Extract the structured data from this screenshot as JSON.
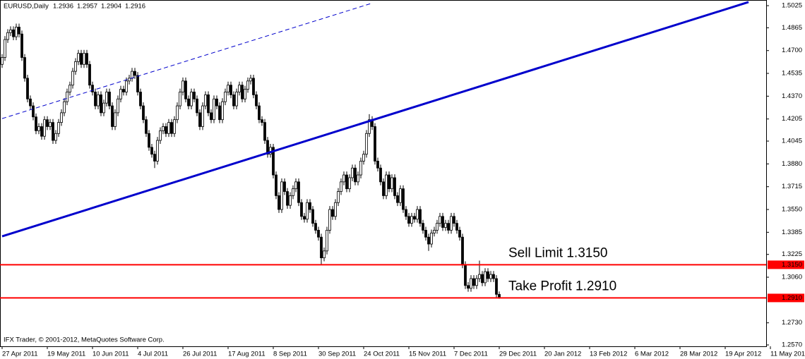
{
  "chart_data": {
    "type": "candlestick",
    "symbol": "EURUSD,Daily",
    "footer": "IFX Trader, © 2001-2012, MetaQuotes Software Corp.",
    "up_color": "#ffffff",
    "down_color": "#000000",
    "wick_color": "#000000",
    "ylim": [
      1.256,
      1.5066
    ],
    "yticks": [
      1.5025,
      1.4865,
      {
        "value": 1.47,
        "label": "1.4700"
      },
      1.4535,
      {
        "value": 1.437,
        "label": "1.4370"
      },
      1.4205,
      1.4045,
      {
        "value": 1.388,
        "label": "1.3880"
      },
      1.3715,
      {
        "value": 1.355,
        "label": "1.3550"
      },
      1.3385,
      1.3225,
      {
        "value": 1.306,
        "label": "1.3060"
      },
      {
        "value": 1.273,
        "label": "1.2730"
      },
      {
        "value": 1.257,
        "label": "1.2570"
      }
    ],
    "xlim": [
      -0.75,
      270.5
    ],
    "xticks": [
      {
        "value": 0,
        "label": "27 Apr 2011"
      },
      {
        "value": 16,
        "label": "19 May 2011"
      },
      {
        "value": 32,
        "label": "10 Jun 2011"
      },
      {
        "value": 48,
        "label": "4 Jul 2011"
      },
      {
        "value": 64,
        "label": "26 Jul 2011"
      },
      {
        "value": 80,
        "label": "17 Aug 2011"
      },
      {
        "value": 96,
        "label": "8 Sep 2011"
      },
      {
        "value": 112,
        "label": "30 Sep 2011"
      },
      {
        "value": 128,
        "label": "24 Oct 2011"
      },
      {
        "value": 144,
        "label": "15 Nov 2011"
      },
      {
        "value": 160,
        "label": "7 Dec 2011"
      },
      {
        "value": 176,
        "label": "29 Dec 2011"
      },
      {
        "value": 192,
        "label": "20 Jan 2012"
      },
      {
        "value": 208,
        "label": "13 Feb 2012"
      },
      {
        "value": 224,
        "label": "6 Mar 2012"
      },
      {
        "value": 240,
        "label": "28 Mar 2012"
      },
      {
        "value": 256,
        "label": "19 Apr 2012"
      },
      {
        "value": 272,
        "label": "11 May 201"
      }
    ],
    "levels": [
      {
        "price": {
          "value": 1.315,
          "label": "1.3150"
        },
        "text": "Sell Limit 1.3150",
        "color": "#ff0000"
      },
      {
        "price": {
          "value": 1.291,
          "label": "1.2910"
        },
        "text": "Take Profit 1.2910",
        "color": "#ff0000"
      }
    ],
    "trendlines": [
      {
        "x": [
          0,
          264.25
        ],
        "y": [
          1.3356,
          1.5051
        ],
        "color": "#0000cc",
        "style": "solid"
      },
      {
        "x": [
          0,
          130.5
        ],
        "y": [
          1.4208,
          1.504
        ],
        "color": "#0000cc",
        "style": "dashed"
      }
    ],
    "ohlc": [
      [
        1.46,
        1.4675,
        1.4575,
        1.465
      ],
      [
        1.465,
        1.4805,
        1.4625,
        1.478
      ],
      [
        1.478,
        1.4855,
        1.4755,
        1.483
      ],
      [
        1.483,
        1.4875,
        1.4805,
        1.485
      ],
      [
        1.485,
        1.4875,
        1.4775,
        1.48
      ],
      [
        1.48,
        1.4895,
        1.4775,
        1.487
      ],
      [
        1.487,
        1.4895,
        1.4795,
        1.482
      ],
      [
        1.482,
        1.4845,
        1.4625,
        1.465
      ],
      [
        1.465,
        1.4675,
        1.4475,
        1.45
      ],
      [
        1.45,
        1.4525,
        1.4325,
        1.435
      ],
      [
        1.435,
        1.4375,
        1.4275,
        1.43
      ],
      [
        1.43,
        1.4325,
        1.4195,
        1.422
      ],
      [
        1.422,
        1.4245,
        1.4095,
        1.412
      ],
      [
        1.412,
        1.4175,
        1.4095,
        1.415
      ],
      [
        1.415,
        1.4175,
        1.4055,
        1.408
      ],
      [
        1.408,
        1.4225,
        1.4055,
        1.42
      ],
      [
        1.42,
        1.4225,
        1.4125,
        1.415
      ],
      [
        1.415,
        1.4205,
        1.4125,
        1.418
      ],
      [
        1.418,
        1.4205,
        1.4025,
        1.405
      ],
      [
        1.405,
        1.4125,
        1.4025,
        1.41
      ],
      [
        1.41,
        1.4205,
        1.4075,
        1.418
      ],
      [
        1.418,
        1.4275,
        1.4155,
        1.425
      ],
      [
        1.425,
        1.4355,
        1.4225,
        1.433
      ],
      [
        1.433,
        1.4425,
        1.4305,
        1.44
      ],
      [
        1.44,
        1.4475,
        1.4375,
        1.445
      ],
      [
        1.445,
        1.4575,
        1.4425,
        1.455
      ],
      [
        1.455,
        1.4645,
        1.4525,
        1.462
      ],
      [
        1.462,
        1.4705,
        1.4595,
        1.468
      ],
      [
        1.468,
        1.4705,
        1.4575,
        1.46
      ],
      [
        1.46,
        1.4705,
        1.4575,
        1.468
      ],
      [
        1.468,
        1.4705,
        1.4575,
        1.46
      ],
      [
        1.46,
        1.4625,
        1.4425,
        1.445
      ],
      [
        1.445,
        1.4475,
        1.4375,
        1.44
      ],
      [
        1.44,
        1.4425,
        1.4275,
        1.43
      ],
      [
        1.43,
        1.4405,
        1.4275,
        1.438
      ],
      [
        1.438,
        1.4405,
        1.4225,
        1.425
      ],
      [
        1.425,
        1.4345,
        1.4225,
        1.432
      ],
      [
        1.432,
        1.4425,
        1.4295,
        1.44
      ],
      [
        1.44,
        1.4425,
        1.4275,
        1.43
      ],
      [
        1.43,
        1.4325,
        1.4125,
        1.415
      ],
      [
        1.415,
        1.4275,
        1.4125,
        1.425
      ],
      [
        1.425,
        1.4375,
        1.4225,
        1.435
      ],
      [
        1.435,
        1.4445,
        1.4325,
        1.442
      ],
      [
        1.442,
        1.4445,
        1.4375,
        1.44
      ],
      [
        1.44,
        1.4505,
        1.4375,
        1.448
      ],
      [
        1.448,
        1.4525,
        1.4455,
        1.45
      ],
      [
        1.45,
        1.4575,
        1.4475,
        1.455
      ],
      [
        1.455,
        1.4575,
        1.4495,
        1.452
      ],
      [
        1.452,
        1.4545,
        1.4375,
        1.44
      ],
      [
        1.44,
        1.4425,
        1.4275,
        1.43
      ],
      [
        1.43,
        1.4325,
        1.4175,
        1.42
      ],
      [
        1.42,
        1.4225,
        1.4075,
        1.41
      ],
      [
        1.41,
        1.4125,
        1.3975,
        1.4
      ],
      [
        1.4,
        1.4025,
        1.3925,
        1.395
      ],
      [
        1.395,
        1.3975,
        1.385,
        1.39
      ],
      [
        1.39,
        1.4075,
        1.3875,
        1.405
      ],
      [
        1.405,
        1.4145,
        1.4025,
        1.412
      ],
      [
        1.412,
        1.4175,
        1.4095,
        1.415
      ],
      [
        1.415,
        1.4175,
        1.4075,
        1.41
      ],
      [
        1.41,
        1.4205,
        1.4075,
        1.418
      ],
      [
        1.418,
        1.4205,
        1.4075,
        1.41
      ],
      [
        1.41,
        1.4225,
        1.4075,
        1.42
      ],
      [
        1.42,
        1.4325,
        1.4175,
        1.43
      ],
      [
        1.43,
        1.4425,
        1.4275,
        1.44
      ],
      [
        1.44,
        1.4505,
        1.4375,
        1.448
      ],
      [
        1.448,
        1.4505,
        1.4325,
        1.435
      ],
      [
        1.435,
        1.4375,
        1.4275,
        1.43
      ],
      [
        1.43,
        1.4425,
        1.4275,
        1.44
      ],
      [
        1.44,
        1.4425,
        1.4325,
        1.435
      ],
      [
        1.435,
        1.4375,
        1.4225,
        1.425
      ],
      [
        1.425,
        1.4275,
        1.4125,
        1.415
      ],
      [
        1.415,
        1.4325,
        1.4125,
        1.43
      ],
      [
        1.43,
        1.4405,
        1.4275,
        1.438
      ],
      [
        1.438,
        1.4405,
        1.4225,
        1.425
      ],
      [
        1.425,
        1.4275,
        1.4175,
        1.42
      ],
      [
        1.42,
        1.4375,
        1.4175,
        1.435
      ],
      [
        1.435,
        1.4375,
        1.4275,
        1.43
      ],
      [
        1.43,
        1.4325,
        1.4175,
        1.42
      ],
      [
        1.42,
        1.4355,
        1.4175,
        1.433
      ],
      [
        1.433,
        1.4425,
        1.4305,
        1.44
      ],
      [
        1.44,
        1.4475,
        1.4375,
        1.445
      ],
      [
        1.445,
        1.4475,
        1.4355,
        1.438
      ],
      [
        1.438,
        1.4405,
        1.4275,
        1.43
      ],
      [
        1.43,
        1.4425,
        1.4275,
        1.44
      ],
      [
        1.44,
        1.4475,
        1.4375,
        1.445
      ],
      [
        1.445,
        1.4475,
        1.4325,
        1.435
      ],
      [
        1.435,
        1.4445,
        1.4325,
        1.442
      ],
      [
        1.442,
        1.4505,
        1.4395,
        1.448
      ],
      [
        1.448,
        1.4525,
        1.4455,
        1.45
      ],
      [
        1.45,
        1.4525,
        1.4355,
        1.438
      ],
      [
        1.438,
        1.4405,
        1.4275,
        1.43
      ],
      [
        1.43,
        1.4325,
        1.4175,
        1.42
      ],
      [
        1.42,
        1.4225,
        1.4155,
        1.418
      ],
      [
        1.418,
        1.4205,
        1.4025,
        1.405
      ],
      [
        1.405,
        1.4075,
        1.3925,
        1.395
      ],
      [
        1.395,
        1.4025,
        1.3925,
        1.4
      ],
      [
        1.4,
        1.4025,
        1.3775,
        1.38
      ],
      [
        1.38,
        1.3825,
        1.3625,
        1.365
      ],
      [
        1.365,
        1.3675,
        1.3525,
        1.355
      ],
      [
        1.355,
        1.3775,
        1.3525,
        1.375
      ],
      [
        1.375,
        1.3775,
        1.3655,
        1.368
      ],
      [
        1.368,
        1.3705,
        1.3555,
        1.358
      ],
      [
        1.358,
        1.3675,
        1.3555,
        1.365
      ],
      [
        1.365,
        1.3725,
        1.3625,
        1.37
      ],
      [
        1.37,
        1.3775,
        1.3675,
        1.375
      ],
      [
        1.375,
        1.3775,
        1.3575,
        1.36
      ],
      [
        1.36,
        1.3625,
        1.3475,
        1.35
      ],
      [
        1.35,
        1.3525,
        1.3455,
        1.348
      ],
      [
        1.348,
        1.3625,
        1.3455,
        1.36
      ],
      [
        1.36,
        1.3625,
        1.3525,
        1.355
      ],
      [
        1.355,
        1.3575,
        1.3425,
        1.345
      ],
      [
        1.345,
        1.3475,
        1.3375,
        1.34
      ],
      [
        1.34,
        1.3425,
        1.3325,
        1.335
      ],
      [
        1.335,
        1.3375,
        1.315,
        1.32
      ],
      [
        1.32,
        1.3275,
        1.3175,
        1.325
      ],
      [
        1.325,
        1.3425,
        1.3225,
        1.34
      ],
      [
        1.34,
        1.3575,
        1.3375,
        1.355
      ],
      [
        1.355,
        1.3575,
        1.3475,
        1.35
      ],
      [
        1.35,
        1.3625,
        1.3475,
        1.36
      ],
      [
        1.36,
        1.3705,
        1.3575,
        1.368
      ],
      [
        1.368,
        1.3775,
        1.3655,
        1.375
      ],
      [
        1.375,
        1.3825,
        1.3725,
        1.38
      ],
      [
        1.38,
        1.3825,
        1.3675,
        1.37
      ],
      [
        1.37,
        1.3805,
        1.3675,
        1.378
      ],
      [
        1.378,
        1.3875,
        1.3755,
        1.385
      ],
      [
        1.385,
        1.3875,
        1.3725,
        1.375
      ],
      [
        1.375,
        1.3825,
        1.3725,
        1.38
      ],
      [
        1.38,
        1.3925,
        1.3775,
        1.39
      ],
      [
        1.39,
        1.3975,
        1.3875,
        1.395
      ],
      [
        1.395,
        1.4125,
        1.3925,
        1.41
      ],
      [
        1.41,
        1.424,
        1.4075,
        1.42
      ],
      [
        1.42,
        1.4225,
        1.4125,
        1.415
      ],
      [
        1.415,
        1.4175,
        1.3875,
        1.39
      ],
      [
        1.39,
        1.3925,
        1.3825,
        1.385
      ],
      [
        1.385,
        1.3875,
        1.3725,
        1.375
      ],
      [
        1.375,
        1.3775,
        1.3625,
        1.365
      ],
      [
        1.365,
        1.3825,
        1.3625,
        1.38
      ],
      [
        1.38,
        1.3825,
        1.3675,
        1.37
      ],
      [
        1.37,
        1.3805,
        1.3675,
        1.378
      ],
      [
        1.378,
        1.3805,
        1.3625,
        1.365
      ],
      [
        1.365,
        1.3675,
        1.3575,
        1.36
      ],
      [
        1.36,
        1.3725,
        1.3575,
        1.37
      ],
      [
        1.37,
        1.3725,
        1.3525,
        1.355
      ],
      [
        1.355,
        1.3575,
        1.3475,
        1.35
      ],
      [
        1.35,
        1.3525,
        1.3425,
        1.345
      ],
      [
        1.345,
        1.3525,
        1.3425,
        1.35
      ],
      [
        1.35,
        1.3525,
        1.3455,
        1.348
      ],
      [
        1.348,
        1.3575,
        1.3455,
        1.355
      ],
      [
        1.355,
        1.3575,
        1.3425,
        1.345
      ],
      [
        1.345,
        1.3475,
        1.3375,
        1.34
      ],
      [
        1.34,
        1.3425,
        1.3325,
        1.335
      ],
      [
        1.335,
        1.3375,
        1.325,
        1.33
      ],
      [
        1.33,
        1.3405,
        1.3275,
        1.338
      ],
      [
        1.338,
        1.3425,
        1.3355,
        1.34
      ],
      [
        1.34,
        1.3475,
        1.3375,
        1.345
      ],
      [
        1.345,
        1.3525,
        1.3425,
        1.35
      ],
      [
        1.35,
        1.3525,
        1.3395,
        1.342
      ],
      [
        1.342,
        1.3475,
        1.3395,
        1.345
      ],
      [
        1.345,
        1.3475,
        1.3375,
        1.34
      ],
      [
        1.34,
        1.3525,
        1.3375,
        1.35
      ],
      [
        1.35,
        1.3525,
        1.3425,
        1.345
      ],
      [
        1.345,
        1.3475,
        1.3375,
        1.34
      ],
      [
        1.34,
        1.3425,
        1.3325,
        1.335
      ],
      [
        1.335,
        1.3375,
        1.3125,
        1.315
      ],
      [
        1.315,
        1.3175,
        1.2975,
        1.3
      ],
      [
        1.3,
        1.3025,
        1.2955,
        1.298
      ],
      [
        1.298,
        1.3075,
        1.2955,
        1.305
      ],
      [
        1.305,
        1.3075,
        1.2975,
        1.3
      ],
      [
        1.3,
        1.3075,
        1.2975,
        1.305
      ],
      [
        1.305,
        1.318,
        1.3025,
        1.308
      ],
      [
        1.308,
        1.3105,
        1.2995,
        1.302
      ],
      [
        1.302,
        1.3125,
        1.2995,
        1.31
      ],
      [
        1.31,
        1.3125,
        1.3025,
        1.305
      ],
      [
        1.305,
        1.3105,
        1.3025,
        1.308
      ],
      [
        1.308,
        1.3105,
        1.3025,
        1.305
      ],
      [
        1.305,
        1.3075,
        1.2911,
        1.2936
      ],
      [
        1.2936,
        1.2957,
        1.2904,
        1.2916
      ]
    ]
  }
}
